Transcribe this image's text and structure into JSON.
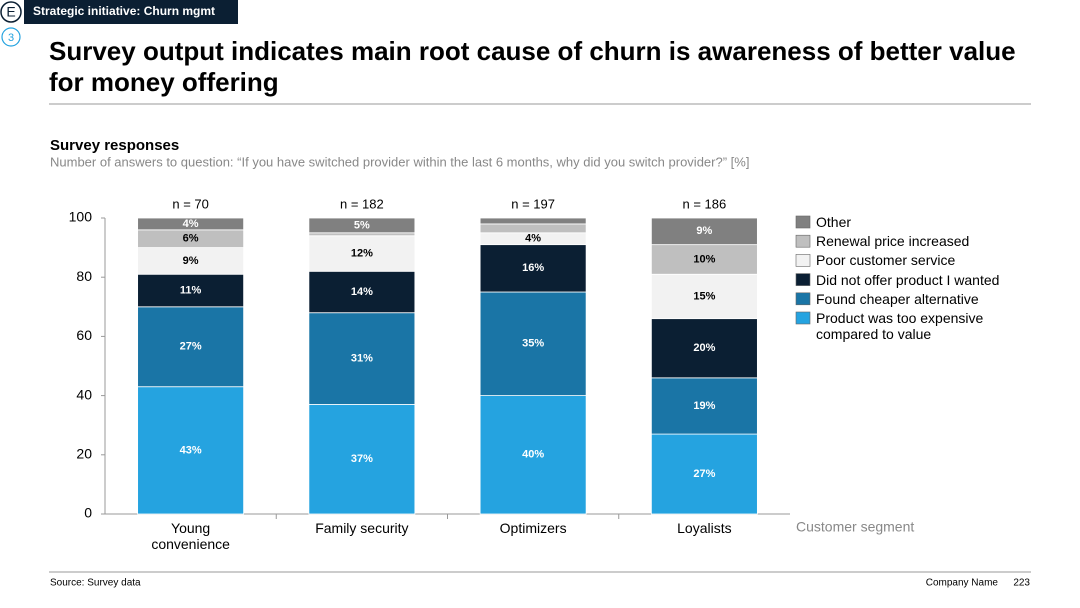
{
  "header": {
    "badge": "E",
    "banner": "Strategic initiative: Churn mgmt",
    "step": "3",
    "title": "Survey output indicates main root cause of churn is awareness of better value for money offering"
  },
  "chart_data": {
    "type": "stacked_bar",
    "title": "Survey responses",
    "subtitle": "Number of answers to question: “If you have switched provider within the last 6 months, why did you switch provider?” [%]",
    "x_label": "Customer segment",
    "categories": [
      "Young convenience",
      "Family security",
      "Optimizers",
      "Loyalists"
    ],
    "annotations": [
      "n = 70",
      "n = 182",
      "n = 197",
      "n = 186"
    ],
    "ylim": [
      0,
      100
    ],
    "yticks": [
      0,
      20,
      40,
      60,
      80,
      100
    ],
    "series": [
      {
        "name": "Product was too expensive compared to value",
        "color": "#25a3e0",
        "values": [
          43,
          37,
          40,
          27
        ],
        "value_labels": [
          "43%",
          "37%",
          "40%",
          "27%"
        ]
      },
      {
        "name": "Found cheaper alternative",
        "color": "#1a75a6",
        "values": [
          27,
          31,
          35,
          19
        ],
        "value_labels": [
          "27%",
          "31%",
          "35%",
          "19%"
        ]
      },
      {
        "name": "Did not offer product I wanted",
        "color": "#0b1f33",
        "values": [
          11,
          14,
          16,
          20
        ],
        "value_labels": [
          "11%",
          "14%",
          "16%",
          "20%"
        ]
      },
      {
        "name": "Poor customer service",
        "color": "#f2f2f2",
        "values": [
          9,
          12,
          4,
          15
        ],
        "value_labels": [
          "9%",
          "12%",
          "4%",
          "15%"
        ]
      },
      {
        "name": "Renewal price increased",
        "color": "#bfbfbf",
        "values": [
          6,
          1,
          3,
          10
        ],
        "value_labels": [
          "6%",
          null,
          null,
          "10%"
        ]
      },
      {
        "name": "Other",
        "color": "#808080",
        "values": [
          4,
          5,
          2,
          9
        ],
        "value_labels": [
          "4%",
          "5%",
          null,
          "9%"
        ]
      }
    ]
  },
  "footer": {
    "source": "Source: Survey data",
    "company": "Company Name",
    "page": "223"
  }
}
